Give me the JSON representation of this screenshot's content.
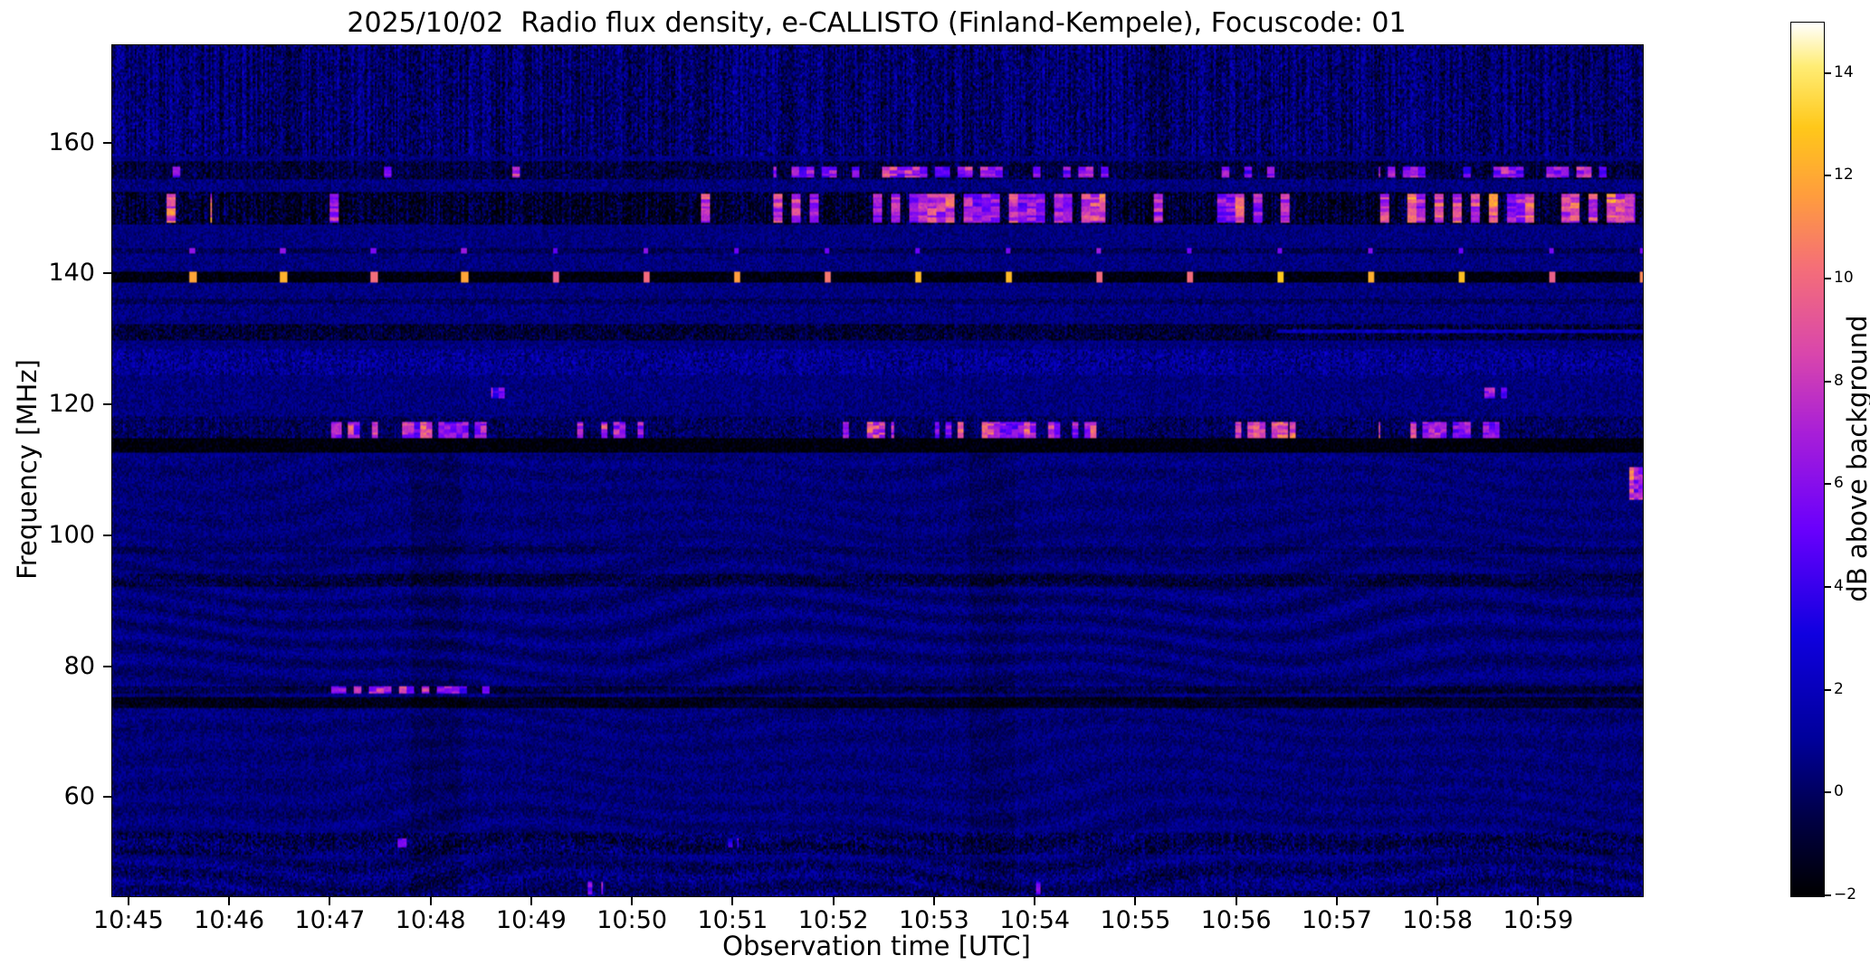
{
  "chart_data": {
    "type": "heatmap",
    "title": "2025/10/02  Radio flux density, e-CALLISTO (Finland-Kempele), Focuscode: 01",
    "xlabel": "Observation time [UTC]",
    "ylabel": "Frequency [MHz]",
    "colorbar_label": "dB above background",
    "x_ticks": [
      "10:45",
      "10:46",
      "10:47",
      "10:48",
      "10:49",
      "10:50",
      "10:51",
      "10:52",
      "10:53",
      "10:54",
      "10:55",
      "10:56",
      "10:57",
      "10:58",
      "10:59"
    ],
    "x_tick_minutes": [
      0,
      1,
      2,
      3,
      4,
      5,
      6,
      7,
      8,
      9,
      10,
      11,
      12,
      13,
      14
    ],
    "time_range_min": [
      -0.17,
      15.03
    ],
    "freq_range_mhz": [
      45,
      175
    ],
    "y_ticks_mhz": [
      160,
      140,
      120,
      100,
      80,
      60
    ],
    "value_range_db": [
      -2,
      15
    ],
    "colorbar_tick_values": [
      -2,
      0,
      2,
      4,
      6,
      8,
      10,
      12,
      14
    ],
    "colorbar_tick_labels": [
      "−2",
      "0",
      "2",
      "4",
      "6",
      "8",
      "10",
      "12",
      "14"
    ],
    "colormap": [
      [
        0.0,
        "#000000"
      ],
      [
        0.09,
        "#000046"
      ],
      [
        0.18,
        "#00009b"
      ],
      [
        0.3,
        "#1000e0"
      ],
      [
        0.42,
        "#6a00fd"
      ],
      [
        0.53,
        "#a81fd8"
      ],
      [
        0.62,
        "#d946ad"
      ],
      [
        0.72,
        "#f56f78"
      ],
      [
        0.8,
        "#ff9c3f"
      ],
      [
        0.88,
        "#ffc81a"
      ],
      [
        0.95,
        "#ffed75"
      ],
      [
        1.0,
        "#ffffff"
      ]
    ],
    "background": {
      "base_db": 0.55,
      "noise_db": 0.85,
      "ripple_db": 0.5,
      "ripple_max_freq": 112.5
    },
    "bands": [
      {
        "f": [
          158.0,
          175.5
        ],
        "offset": -0.25,
        "noise": 1.35,
        "stripes": 0.9
      },
      {
        "f": [
          154.6,
          157.2
        ],
        "offset": -1.1,
        "noise": 1.1,
        "stripes": 0.5
      },
      {
        "f": [
          147.6,
          152.6
        ],
        "offset": -1.5,
        "noise": 1.5,
        "stripes": 0.9
      },
      {
        "f": [
          138.8,
          140.4
        ],
        "offset": -2.3,
        "noise": 0.4,
        "stripes": 0
      },
      {
        "f": [
          143.2,
          144.0
        ],
        "offset": -0.8,
        "noise": 0.5,
        "stripes": 0
      },
      {
        "f": [
          135.4,
          136.4
        ],
        "offset": -0.7,
        "noise": 0.6,
        "stripes": 0
      },
      {
        "f": [
          130.0,
          132.4
        ],
        "offset": -1.3,
        "noise": 1.1,
        "stripes": 0.3
      },
      {
        "f": [
          124.6,
          128.6
        ],
        "offset": 0.45,
        "noise": 1.15,
        "stripes": 0.2
      },
      {
        "f": [
          114.9,
          118.2
        ],
        "offset": -0.55,
        "noise": 1.0,
        "stripes": 0.3
      },
      {
        "f": [
          112.9,
          114.9
        ],
        "offset": -2.4,
        "noise": 0.35,
        "stripes": 0
      },
      {
        "f": [
          97.2,
          98.3
        ],
        "offset": -0.5,
        "noise": 0.6,
        "stripes": 0
      },
      {
        "f": [
          92.4,
          94.1
        ],
        "offset": -0.85,
        "noise": 0.9,
        "stripes": 0
      },
      {
        "f": [
          75.9,
          77.2
        ],
        "offset": -1.0,
        "noise": 0.7,
        "stripes": 0
      },
      {
        "f": [
          73.9,
          75.3
        ],
        "offset": -1.7,
        "noise": 0.5,
        "stripes": 0
      },
      {
        "f": [
          51.4,
          54.6
        ],
        "offset": -0.5,
        "noise": 1.35,
        "stripes": 0.3
      },
      {
        "f": [
          45.0,
          50.2
        ],
        "offset": -0.15,
        "noise": 1.15,
        "stripes": 0.2
      }
    ],
    "burst_groups": [
      {
        "f": [
          147.9,
          152.4
        ],
        "seed": 11,
        "block": 6,
        "peak": 13.5,
        "segments": [
          [
            0.8,
            1.15,
            0.35
          ],
          [
            4.4,
            4.75,
            0.18
          ],
          [
            6.3,
            9.7,
            0.55
          ],
          [
            10.8,
            11.6,
            0.5
          ],
          [
            12.3,
            14.95,
            0.6
          ],
          [
            -0.2,
            15.03,
            0.05
          ]
        ]
      },
      {
        "f": [
          154.7,
          156.6
        ],
        "seed": 22,
        "block": 5,
        "peak": 11.5,
        "segments": [
          [
            0.75,
            1.1,
            0.3
          ],
          [
            6.4,
            9.7,
            0.35
          ],
          [
            10.8,
            11.5,
            0.35
          ],
          [
            12.4,
            14.8,
            0.4
          ],
          [
            -0.2,
            15.03,
            0.03
          ]
        ]
      },
      {
        "f": [
          114.9,
          117.6
        ],
        "seed": 33,
        "block": 4,
        "peak": 12.5,
        "segments": [
          [
            2.0,
            3.6,
            0.55
          ],
          [
            4.4,
            5.1,
            0.5
          ],
          [
            7.0,
            7.6,
            0.5
          ],
          [
            8.0,
            9.6,
            0.55
          ],
          [
            10.9,
            11.5,
            0.5
          ],
          [
            12.4,
            13.6,
            0.55
          ],
          [
            -0.2,
            15.03,
            0.02
          ]
        ]
      },
      {
        "f": [
          75.95,
          77.05
        ],
        "seed": 44,
        "block": 5,
        "peak": 11.5,
        "segments": [
          [
            2.0,
            3.7,
            0.55
          ]
        ]
      },
      {
        "f": [
          121.2,
          122.8
        ],
        "seed": 55,
        "block": 4,
        "peak": 9,
        "segments": [
          [
            3.6,
            3.8,
            0.8
          ],
          [
            13.45,
            13.7,
            0.7
          ]
        ]
      },
      {
        "f": [
          105.5,
          110.5
        ],
        "seed": 66,
        "block": 3,
        "peak": 14,
        "segments": [
          [
            14.9,
            15.03,
            0.7
          ]
        ]
      },
      {
        "f": [
          130.9,
          131.7
        ],
        "seed": 77,
        "block": 2,
        "peak": 3.4,
        "segments": [
          [
            11.4,
            15.03,
            1.0
          ]
        ]
      },
      {
        "f": [
          45.3,
          47.2
        ],
        "seed": 88,
        "block": 3,
        "peak": 10,
        "segments": [
          [
            4.55,
            4.7,
            0.6
          ],
          [
            8.95,
            9.1,
            0.5
          ]
        ]
      },
      {
        "f": [
          52.4,
          53.8
        ],
        "seed": 99,
        "block": 3,
        "peak": 8,
        "segments": [
          [
            2.6,
            2.8,
            0.6
          ],
          [
            5.9,
            6.05,
            0.4
          ]
        ]
      }
    ],
    "pulse_trains": [
      {
        "f": [
          138.85,
          140.35
        ],
        "start": 0.6,
        "period": 0.9,
        "width": 0.065,
        "peak": 13.2,
        "seed": 7
      },
      {
        "f": [
          143.3,
          143.95
        ],
        "start": 0.6,
        "period": 0.9,
        "width": 0.05,
        "peak": 6.8,
        "seed": 8
      }
    ],
    "vertical_dips": [
      {
        "t": [
          2.8,
          3.3
        ],
        "below": 113,
        "offset": -0.4
      },
      {
        "t": [
          8.35,
          8.8
        ],
        "below": 113,
        "offset": -0.35
      }
    ]
  }
}
